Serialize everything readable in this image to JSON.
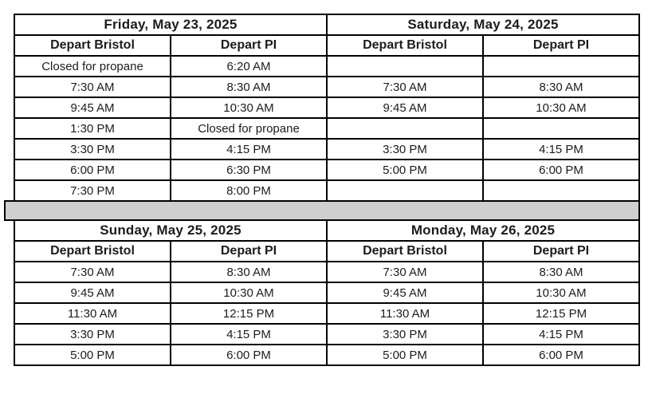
{
  "page": {
    "background": "#ffffff",
    "text_color": "#1c1c1c",
    "border_color": "#000000"
  },
  "divider": {
    "fill": "#cfcfcf"
  },
  "tables": [
    {
      "name": "top-schedule",
      "day_headers": [
        "Friday, May 23, 2025",
        "Saturday, May 24, 2025"
      ],
      "col_headers": [
        "Depart Bristol",
        "Depart PI",
        "Depart Bristol",
        "Depart PI"
      ],
      "rows": [
        [
          "Closed for propane",
          "6:20 AM",
          "",
          ""
        ],
        [
          "7:30 AM",
          "8:30 AM",
          "7:30 AM",
          "8:30 AM"
        ],
        [
          "9:45 AM",
          "10:30 AM",
          "9:45 AM",
          "10:30 AM"
        ],
        [
          "1:30 PM",
          "Closed for propane",
          "",
          ""
        ],
        [
          "3:30 PM",
          "4:15 PM",
          "3:30 PM",
          "4:15 PM"
        ],
        [
          "6:00 PM",
          "6:30 PM",
          "5:00 PM",
          "6:00 PM"
        ],
        [
          "7:30 PM",
          "8:00 PM",
          "",
          ""
        ]
      ]
    },
    {
      "name": "bottom-schedule",
      "day_headers": [
        "Sunday, May 25, 2025",
        "Monday, May 26, 2025"
      ],
      "col_headers": [
        "Depart Bristol",
        "Depart PI",
        "Depart Bristol",
        "Depart PI"
      ],
      "rows": [
        [
          "7:30 AM",
          "8:30 AM",
          "7:30 AM",
          "8:30 AM"
        ],
        [
          "9:45 AM",
          "10:30 AM",
          "9:45 AM",
          "10:30 AM"
        ],
        [
          "11:30 AM",
          "12:15 PM",
          "11:30 AM",
          "12:15 PM"
        ],
        [
          "3:30 PM",
          "4:15 PM",
          "3:30 PM",
          "4:15 PM"
        ],
        [
          "5:00 PM",
          "6:00 PM",
          "5:00 PM",
          "6:00 PM"
        ]
      ]
    }
  ]
}
